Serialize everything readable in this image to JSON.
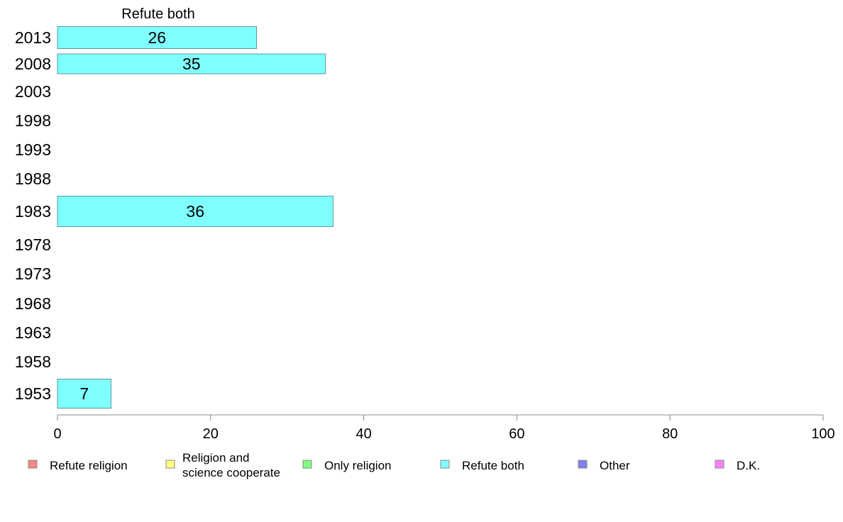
{
  "chart_data": {
    "type": "bar",
    "orientation": "horizontal",
    "title": "Refute both",
    "categories": [
      "2013",
      "2008",
      "2003",
      "1998",
      "1993",
      "1988",
      "1983",
      "1978",
      "1973",
      "1968",
      "1963",
      "1958",
      "1953"
    ],
    "series": [
      {
        "name": "Refute both",
        "values": [
          26,
          35,
          null,
          null,
          null,
          null,
          36,
          null,
          null,
          null,
          null,
          null,
          7
        ],
        "labels": [
          "26",
          "35",
          "",
          "",
          "",
          "",
          "36",
          "",
          "",
          "",
          "",
          "",
          "7"
        ]
      }
    ],
    "xlim": [
      0,
      100
    ],
    "xticks": [
      "0",
      "20",
      "40",
      "60",
      "80",
      "100"
    ],
    "grid": false,
    "legend_position": "bottom",
    "legend": [
      {
        "label": "Refute religion",
        "color": "#f28b82"
      },
      {
        "label": "Religion and science cooperate",
        "lines": [
          "Religion and",
          "science cooperate"
        ],
        "color": "#ffff80"
      },
      {
        "label": "Only religion",
        "color": "#80ff80"
      },
      {
        "label": "Refute both",
        "color": "#80ffff"
      },
      {
        "label": "Other",
        "color": "#8080f0"
      },
      {
        "label": "D.K.",
        "color": "#ff80ff"
      }
    ],
    "bar_color": "#80ffff",
    "bar_stroke": "#5a9a9a",
    "axis_color": "#888888"
  }
}
